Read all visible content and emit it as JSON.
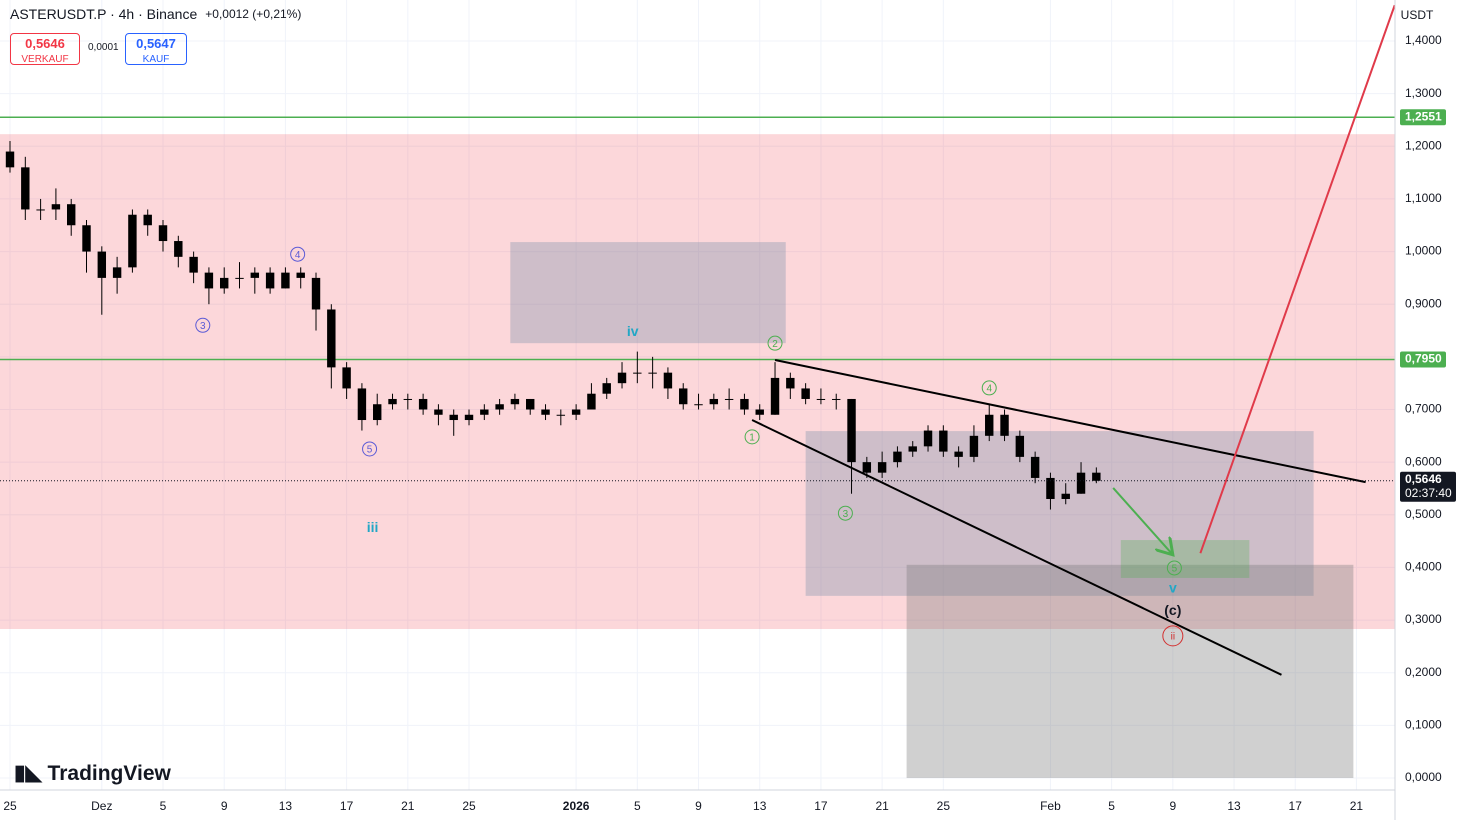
{
  "header": {
    "symbol": "ASTERUSDT.P · 4h · Binance",
    "change": "+0,0012 (+0,21%)",
    "sell_price": "0,5646",
    "sell_label": "VERKAUF",
    "spread": "0,0001",
    "buy_price": "0,5647",
    "buy_label": "KAUF",
    "currency": "USDT",
    "logo": "TradingView"
  },
  "chart_data": {
    "type": "candlestick",
    "up_color": "#000000",
    "down_color": "#000000",
    "x": [
      0,
      1,
      2,
      3,
      4,
      5,
      6,
      7,
      8,
      9,
      10,
      11,
      12,
      13,
      14,
      15,
      16,
      17,
      18,
      19,
      20,
      21,
      22,
      23,
      24,
      25,
      26,
      27,
      28,
      29,
      30,
      31,
      32,
      33,
      34,
      35,
      36,
      37,
      38,
      39,
      40,
      41,
      42,
      43,
      44,
      45,
      46,
      47,
      48,
      49,
      50,
      51,
      52,
      53,
      54,
      55,
      56,
      57,
      58,
      59,
      60,
      61,
      62,
      63,
      64,
      65,
      66,
      67,
      68,
      69,
      70,
      71
    ],
    "ohlc": [
      [
        1.19,
        1.21,
        1.15,
        1.16
      ],
      [
        1.16,
        1.18,
        1.06,
        1.08
      ],
      [
        1.08,
        1.1,
        1.06,
        1.08
      ],
      [
        1.08,
        1.12,
        1.06,
        1.09
      ],
      [
        1.09,
        1.1,
        1.03,
        1.05
      ],
      [
        1.05,
        1.06,
        0.96,
        1.0
      ],
      [
        1.0,
        1.01,
        0.88,
        0.95
      ],
      [
        0.95,
        0.99,
        0.92,
        0.97
      ],
      [
        0.97,
        1.08,
        0.96,
        1.07
      ],
      [
        1.07,
        1.08,
        1.03,
        1.05
      ],
      [
        1.05,
        1.06,
        1.0,
        1.02
      ],
      [
        1.02,
        1.03,
        0.97,
        0.99
      ],
      [
        0.99,
        1.0,
        0.94,
        0.96
      ],
      [
        0.96,
        0.97,
        0.9,
        0.93
      ],
      [
        0.93,
        0.97,
        0.92,
        0.95
      ],
      [
        0.95,
        0.98,
        0.93,
        0.95
      ],
      [
        0.95,
        0.97,
        0.92,
        0.96
      ],
      [
        0.96,
        0.97,
        0.92,
        0.93
      ],
      [
        0.93,
        0.97,
        0.93,
        0.96
      ],
      [
        0.96,
        0.97,
        0.93,
        0.95
      ],
      [
        0.95,
        0.96,
        0.85,
        0.89
      ],
      [
        0.89,
        0.9,
        0.74,
        0.78
      ],
      [
        0.78,
        0.79,
        0.72,
        0.74
      ],
      [
        0.74,
        0.75,
        0.66,
        0.68
      ],
      [
        0.68,
        0.73,
        0.67,
        0.71
      ],
      [
        0.71,
        0.73,
        0.7,
        0.72
      ],
      [
        0.72,
        0.73,
        0.7,
        0.72
      ],
      [
        0.72,
        0.73,
        0.69,
        0.7
      ],
      [
        0.7,
        0.71,
        0.67,
        0.69
      ],
      [
        0.69,
        0.7,
        0.65,
        0.68
      ],
      [
        0.68,
        0.7,
        0.67,
        0.69
      ],
      [
        0.69,
        0.71,
        0.68,
        0.7
      ],
      [
        0.7,
        0.72,
        0.69,
        0.71
      ],
      [
        0.71,
        0.73,
        0.7,
        0.72
      ],
      [
        0.72,
        0.72,
        0.69,
        0.7
      ],
      [
        0.7,
        0.71,
        0.68,
        0.69
      ],
      [
        0.69,
        0.7,
        0.67,
        0.69
      ],
      [
        0.69,
        0.71,
        0.68,
        0.7
      ],
      [
        0.7,
        0.75,
        0.7,
        0.73
      ],
      [
        0.73,
        0.76,
        0.72,
        0.75
      ],
      [
        0.75,
        0.79,
        0.74,
        0.77
      ],
      [
        0.77,
        0.81,
        0.75,
        0.77
      ],
      [
        0.77,
        0.8,
        0.74,
        0.77
      ],
      [
        0.77,
        0.78,
        0.72,
        0.74
      ],
      [
        0.74,
        0.75,
        0.7,
        0.71
      ],
      [
        0.71,
        0.73,
        0.7,
        0.71
      ],
      [
        0.71,
        0.73,
        0.7,
        0.72
      ],
      [
        0.72,
        0.74,
        0.7,
        0.72
      ],
      [
        0.72,
        0.73,
        0.69,
        0.7
      ],
      [
        0.7,
        0.71,
        0.68,
        0.69
      ],
      [
        0.69,
        0.79,
        0.69,
        0.76
      ],
      [
        0.76,
        0.77,
        0.72,
        0.74
      ],
      [
        0.74,
        0.75,
        0.71,
        0.72
      ],
      [
        0.72,
        0.74,
        0.71,
        0.72
      ],
      [
        0.72,
        0.73,
        0.7,
        0.72
      ],
      [
        0.72,
        0.72,
        0.54,
        0.6
      ],
      [
        0.6,
        0.61,
        0.57,
        0.58
      ],
      [
        0.58,
        0.62,
        0.57,
        0.6
      ],
      [
        0.6,
        0.63,
        0.59,
        0.62
      ],
      [
        0.62,
        0.64,
        0.61,
        0.63
      ],
      [
        0.63,
        0.67,
        0.62,
        0.66
      ],
      [
        0.66,
        0.67,
        0.61,
        0.62
      ],
      [
        0.62,
        0.63,
        0.59,
        0.61
      ],
      [
        0.61,
        0.67,
        0.6,
        0.65
      ],
      [
        0.65,
        0.71,
        0.64,
        0.69
      ],
      [
        0.69,
        0.7,
        0.64,
        0.65
      ],
      [
        0.65,
        0.66,
        0.6,
        0.61
      ],
      [
        0.61,
        0.62,
        0.56,
        0.57
      ],
      [
        0.57,
        0.58,
        0.51,
        0.53
      ],
      [
        0.53,
        0.56,
        0.52,
        0.54
      ],
      [
        0.54,
        0.6,
        0.54,
        0.58
      ],
      [
        0.58,
        0.59,
        0.56,
        0.5646
      ]
    ],
    "xlim": [
      -0.654,
      90.52
    ],
    "ylim": [
      0,
      1.4
    ],
    "xticks": [
      {
        "value": 0,
        "label": "25"
      },
      {
        "value": 6,
        "label": "Dez"
      },
      {
        "value": 10,
        "label": "5"
      },
      {
        "value": 14,
        "label": "9"
      },
      {
        "value": 18,
        "label": "13"
      },
      {
        "value": 22,
        "label": "17"
      },
      {
        "value": 26,
        "label": "21"
      },
      {
        "value": 30,
        "label": "25"
      },
      {
        "value": 37,
        "label": "2026"
      },
      {
        "value": 41,
        "label": "5"
      },
      {
        "value": 45,
        "label": "9"
      },
      {
        "value": 49,
        "label": "13"
      },
      {
        "value": 53,
        "label": "17"
      },
      {
        "value": 57,
        "label": "21"
      },
      {
        "value": 61,
        "label": "25"
      },
      {
        "value": 68,
        "label": "Feb"
      },
      {
        "value": 72,
        "label": "5"
      },
      {
        "value": 76,
        "label": "9"
      },
      {
        "value": 80,
        "label": "13"
      },
      {
        "value": 84,
        "label": "17"
      },
      {
        "value": 88,
        "label": "21"
      }
    ],
    "yticks": [
      {
        "value": 0,
        "label": "0,0000"
      },
      {
        "value": 0.1,
        "label": "0,1000"
      },
      {
        "value": 0.2,
        "label": "0,2000"
      },
      {
        "value": 0.3,
        "label": "0,3000"
      },
      {
        "value": 0.4,
        "label": "0,4000"
      },
      {
        "value": 0.5,
        "label": "0,5000"
      },
      {
        "value": 0.6,
        "label": "0,6000"
      },
      {
        "value": 0.7,
        "label": "0,7000"
      },
      {
        "value": 0.8,
        "label": "0,8000"
      },
      {
        "value": 0.9,
        "label": "0,9000"
      },
      {
        "value": 1.0,
        "label": "1,0000"
      },
      {
        "value": 1.1,
        "label": "1,1000"
      },
      {
        "value": 1.2,
        "label": "1,2000"
      },
      {
        "value": 1.3,
        "label": "1,3000"
      },
      {
        "value": 1.4,
        "label": "1,4000"
      }
    ],
    "grid": true,
    "zones": [
      {
        "x": [
          -0.654,
          90.52
        ],
        "y": [
          0.283,
          1.223
        ],
        "color": "rgba(242,54,69,0.2)"
      },
      {
        "x": [
          32.7,
          50.7
        ],
        "y": [
          0.826,
          1.018
        ],
        "color": "rgba(120,144,170,0.35)"
      },
      {
        "x": [
          52.0,
          85.2
        ],
        "y": [
          0.346,
          0.659
        ],
        "color": "rgba(120,144,170,0.35)"
      },
      {
        "x": [
          58.6,
          87.8
        ],
        "y": [
          0,
          0.405
        ],
        "color": "rgba(120,120,120,0.35)"
      },
      {
        "x": [
          72.6,
          81.0
        ],
        "y": [
          0.38,
          0.452
        ],
        "color": "rgba(76,175,80,0.3)"
      }
    ],
    "lines": [
      {
        "x": [
          50.0,
          88.6
        ],
        "y": [
          0.794,
          0.562
        ],
        "color": "#000000"
      },
      {
        "x": [
          48.5,
          83.1
        ],
        "y": [
          0.68,
          0.196
        ],
        "color": "#000000"
      },
      {
        "x": [
          77.8,
          90.5
        ],
        "y": [
          0.427,
          1.468
        ],
        "color": "#e03a4a"
      },
      {
        "x": [
          72.1,
          76.0
        ],
        "y": [
          0.551,
          0.424
        ],
        "color": "#4caf50",
        "arrow": true
      }
    ],
    "levels": [
      {
        "value": 1.2551,
        "label": "1,2551",
        "color": "#4caf50"
      },
      {
        "value": 0.795,
        "label": "0,7950",
        "color": "#4caf50"
      }
    ],
    "last": {
      "value": 0.5646,
      "label": "0,5646",
      "timer": "02:37:40"
    },
    "waves": [
      {
        "text": "3",
        "x": 12.6,
        "y": 0.86,
        "color": "#5b5bd6",
        "circle": true
      },
      {
        "text": "4",
        "x": 18.8,
        "y": 0.995,
        "color": "#5b5bd6",
        "circle": true
      },
      {
        "text": "5",
        "x": 23.5,
        "y": 0.625,
        "color": "#5b5bd6",
        "circle": true
      },
      {
        "text": "iii",
        "x": 23.7,
        "y": 0.476,
        "color": "#22a7c6",
        "circle": false
      },
      {
        "text": "iv",
        "x": 40.7,
        "y": 0.849,
        "color": "#22a7c6",
        "circle": false
      },
      {
        "text": "1",
        "x": 48.5,
        "y": 0.648,
        "color": "#4caf50",
        "circle": true
      },
      {
        "text": "2",
        "x": 50.0,
        "y": 0.826,
        "color": "#4caf50",
        "circle": true
      },
      {
        "text": "3",
        "x": 54.6,
        "y": 0.503,
        "color": "#4caf50",
        "circle": true
      },
      {
        "text": "4",
        "x": 64.0,
        "y": 0.741,
        "color": "#4caf50",
        "circle": true
      },
      {
        "text": "5",
        "x": 76.1,
        "y": 0.399,
        "color": "#4caf50",
        "circle": true
      },
      {
        "text": "v",
        "x": 76.0,
        "y": 0.361,
        "color": "#22a7c6",
        "circle": false
      },
      {
        "text": "(c)",
        "x": 76.0,
        "y": 0.319,
        "color": "#131722",
        "circle": false
      },
      {
        "text": "ii",
        "x": 76.0,
        "y": 0.27,
        "color": "#d32f2f",
        "circle": true
      }
    ]
  }
}
